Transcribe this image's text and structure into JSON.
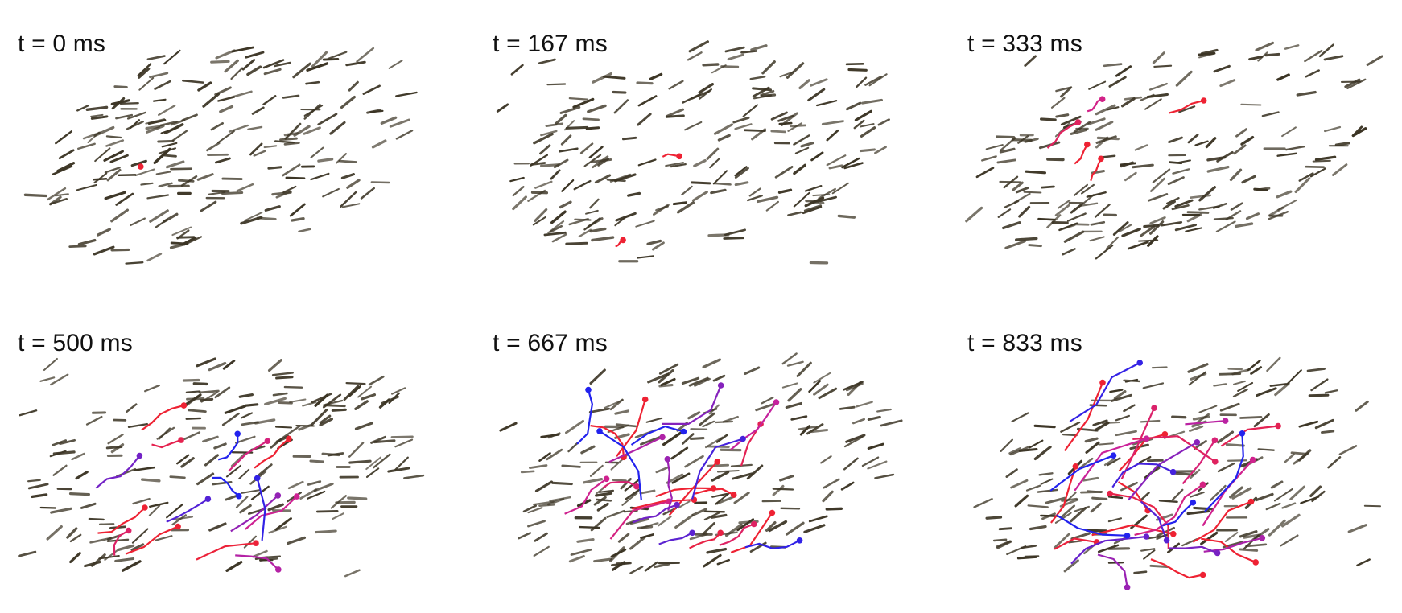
{
  "figure": {
    "panels": [
      {
        "time_label": "t = 0 ms"
      },
      {
        "time_label": "t = 167 ms"
      },
      {
        "time_label": "t = 333 ms"
      },
      {
        "time_label": "t = 500 ms"
      },
      {
        "time_label": "t = 667 ms"
      },
      {
        "time_label": "t = 833 ms"
      }
    ],
    "colors": {
      "fish": "#3b3424",
      "startle_early": "#ee2233",
      "startle_mid": "#cc2299",
      "startle_late": "#2222ee",
      "background": "#ffffff"
    }
  }
}
